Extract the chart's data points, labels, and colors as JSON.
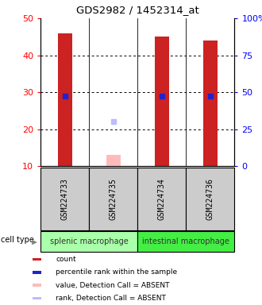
{
  "title": "GDS2982 / 1452314_at",
  "samples": [
    "GSM224733",
    "GSM224735",
    "GSM224734",
    "GSM224736"
  ],
  "bar_values": [
    46,
    null,
    45,
    44
  ],
  "percentile_values": [
    29,
    null,
    29,
    29
  ],
  "absent_value": 13,
  "absent_rank": 22,
  "absent_sample_idx": 1,
  "ylim_left": [
    10,
    50
  ],
  "ylim_right": [
    0,
    100
  ],
  "yticks_left": [
    10,
    20,
    30,
    40,
    50
  ],
  "yticks_right": [
    0,
    25,
    50,
    75,
    100
  ],
  "ytick_labels_right": [
    "0",
    "25",
    "50",
    "75",
    "100%"
  ],
  "groups": [
    {
      "label": "splenic macrophage",
      "samples": [
        0,
        1
      ],
      "color": "#aaffaa"
    },
    {
      "label": "intestinal macrophage",
      "samples": [
        2,
        3
      ],
      "color": "#44ee44"
    }
  ],
  "cell_type_label": "cell type",
  "bar_color_present": "#cc2222",
  "bar_color_absent": "#ffbbbb",
  "percentile_color": "#2222cc",
  "rank_absent_color": "#bbbbff",
  "bar_width": 0.3,
  "bg_color": "#ffffff",
  "sample_label_bg": "#cccccc",
  "legend_colors": [
    "#cc2222",
    "#2222cc",
    "#ffbbbb",
    "#bbbbff"
  ],
  "legend_labels": [
    "count",
    "percentile rank within the sample",
    "value, Detection Call = ABSENT",
    "rank, Detection Call = ABSENT"
  ]
}
